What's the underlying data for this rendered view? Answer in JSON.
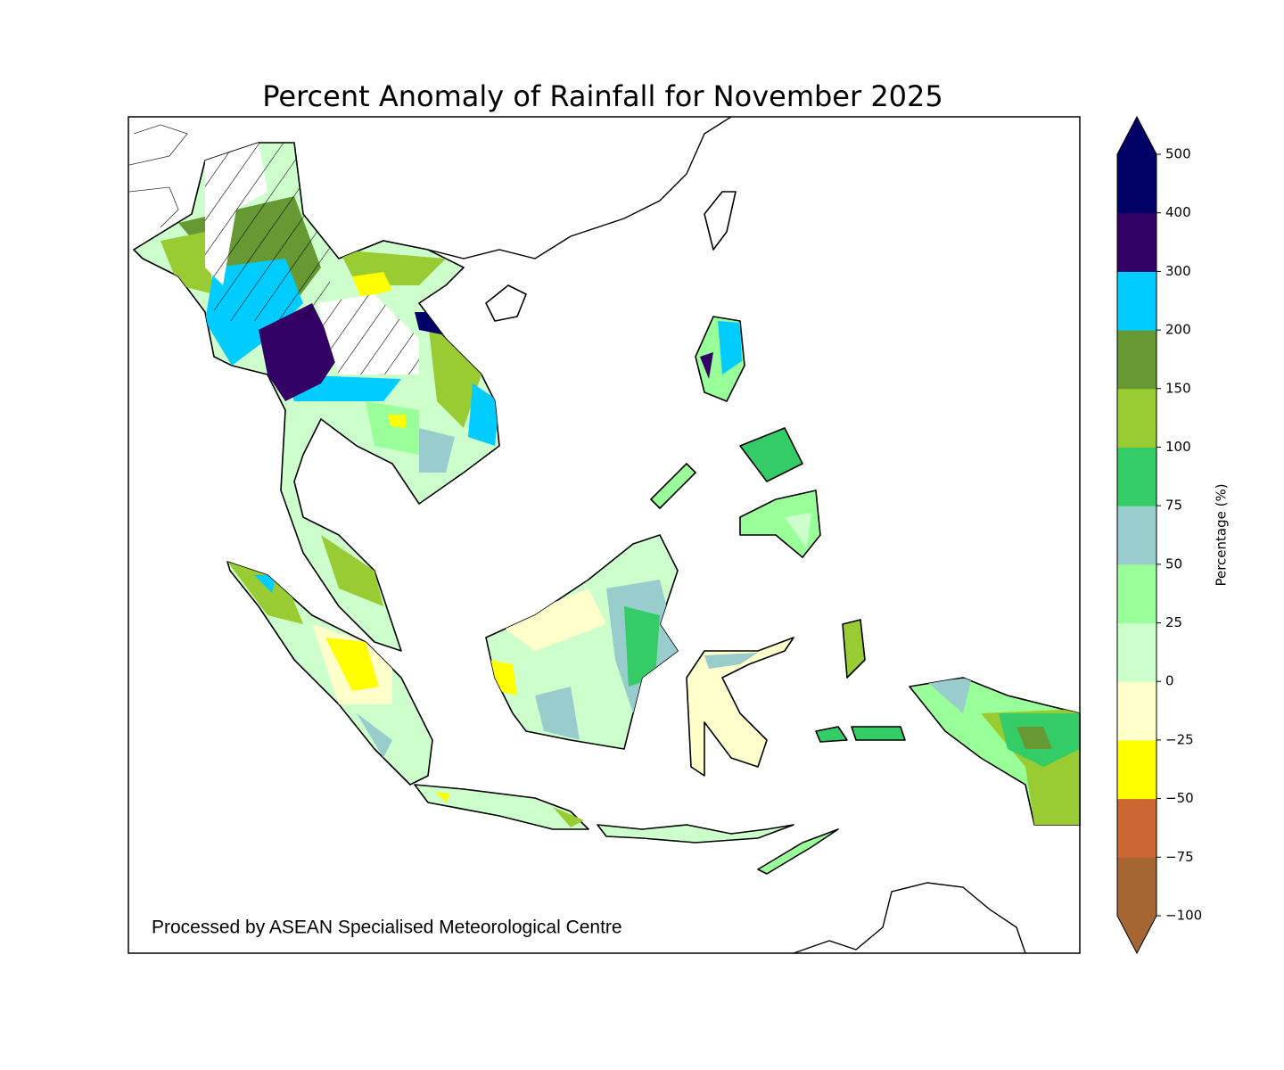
{
  "title": "Percent Anomaly of Rainfall for November 2025",
  "credit": "Processed by ASEAN Specialised Meteorological Centre",
  "colorbar": {
    "label": "Percentage (%)",
    "ticks": [
      {
        "value": -100,
        "label": "−100"
      },
      {
        "value": -75,
        "label": "−75"
      },
      {
        "value": -50,
        "label": "−50"
      },
      {
        "value": -25,
        "label": "−25"
      },
      0,
      25,
      50,
      75,
      100,
      150,
      200,
      300,
      400,
      500
    ],
    "colors": [
      "#a56633",
      "#cc6633",
      "#ffff00",
      "#ffffcc",
      "#ccffcc",
      "#99ff99",
      "#99cccc",
      "#33cc66",
      "#99cc33",
      "#669933",
      "#00ccff",
      "#330066",
      "#000066"
    ],
    "under_color": "#a56633",
    "over_color": "#000066"
  }
}
